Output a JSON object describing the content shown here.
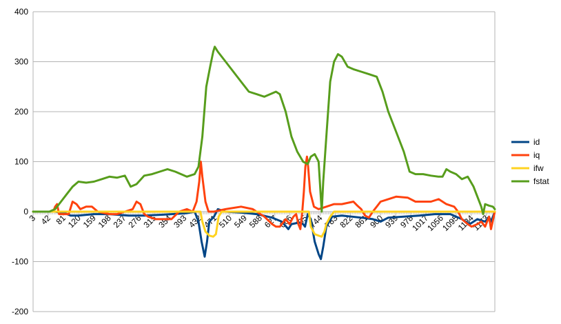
{
  "chart_data": {
    "type": "line",
    "title": "",
    "xlabel": "",
    "ylabel": "",
    "ylim": [
      -200,
      400
    ],
    "yticks": [
      -200,
      -100,
      0,
      100,
      200,
      300,
      400
    ],
    "xlim": [
      3,
      1195
    ],
    "xticks": [
      "3",
      "42",
      "81",
      "120",
      "159",
      "198",
      "237",
      "276",
      "315",
      "354",
      "393",
      "432",
      "471",
      "510",
      "549",
      "588",
      "627",
      "666",
      "705",
      "744",
      "783",
      "822",
      "861",
      "900",
      "939",
      "978",
      "1017",
      "1056",
      "1095",
      "1134",
      "1173"
    ],
    "grid": "horizontal",
    "legend_position": "right",
    "series": [
      {
        "name": "id",
        "color": "#004586",
        "points": [
          [
            3,
            0
          ],
          [
            60,
            0
          ],
          [
            85,
            -3
          ],
          [
            100,
            -8
          ],
          [
            120,
            -8
          ],
          [
            160,
            -5
          ],
          [
            200,
            -5
          ],
          [
            250,
            -8
          ],
          [
            290,
            -8
          ],
          [
            340,
            -6
          ],
          [
            400,
            -3
          ],
          [
            420,
            0
          ],
          [
            430,
            -20
          ],
          [
            438,
            -60
          ],
          [
            446,
            -90
          ],
          [
            452,
            -60
          ],
          [
            458,
            -20
          ],
          [
            470,
            -10
          ],
          [
            480,
            5
          ],
          [
            500,
            0
          ],
          [
            540,
            -2
          ],
          [
            580,
            -5
          ],
          [
            620,
            -12
          ],
          [
            645,
            -20
          ],
          [
            662,
            -35
          ],
          [
            670,
            -25
          ],
          [
            690,
            -22
          ],
          [
            700,
            -25
          ],
          [
            705,
            -30
          ],
          [
            712,
            -5
          ],
          [
            720,
            -15
          ],
          [
            730,
            -60
          ],
          [
            740,
            -85
          ],
          [
            746,
            -95
          ],
          [
            752,
            -70
          ],
          [
            760,
            -30
          ],
          [
            775,
            -10
          ],
          [
            800,
            -8
          ],
          [
            850,
            -12
          ],
          [
            880,
            -15
          ],
          [
            900,
            -20
          ],
          [
            920,
            -12
          ],
          [
            960,
            -10
          ],
          [
            1000,
            -8
          ],
          [
            1040,
            -5
          ],
          [
            1080,
            -5
          ],
          [
            1110,
            -15
          ],
          [
            1130,
            -25
          ],
          [
            1150,
            -15
          ],
          [
            1170,
            -20
          ],
          [
            1180,
            -10
          ],
          [
            1185,
            -20
          ],
          [
            1195,
            0
          ]
        ]
      },
      {
        "name": "iq",
        "color": "#ff420e",
        "points": [
          [
            3,
            0
          ],
          [
            55,
            0
          ],
          [
            60,
            10
          ],
          [
            65,
            15
          ],
          [
            70,
            -5
          ],
          [
            80,
            -5
          ],
          [
            95,
            -5
          ],
          [
            105,
            20
          ],
          [
            115,
            15
          ],
          [
            125,
            5
          ],
          [
            140,
            10
          ],
          [
            155,
            10
          ],
          [
            170,
            0
          ],
          [
            200,
            -5
          ],
          [
            220,
            -5
          ],
          [
            240,
            0
          ],
          [
            260,
            5
          ],
          [
            270,
            20
          ],
          [
            280,
            15
          ],
          [
            290,
            -5
          ],
          [
            300,
            -10
          ],
          [
            320,
            -15
          ],
          [
            360,
            -15
          ],
          [
            380,
            0
          ],
          [
            400,
            5
          ],
          [
            415,
            0
          ],
          [
            425,
            20
          ],
          [
            432,
            60
          ],
          [
            436,
            100
          ],
          [
            440,
            70
          ],
          [
            448,
            20
          ],
          [
            456,
            0
          ],
          [
            470,
            0
          ],
          [
            500,
            5
          ],
          [
            540,
            10
          ],
          [
            570,
            5
          ],
          [
            600,
            -10
          ],
          [
            620,
            -25
          ],
          [
            630,
            -30
          ],
          [
            640,
            -30
          ],
          [
            655,
            -15
          ],
          [
            665,
            -25
          ],
          [
            675,
            -10
          ],
          [
            682,
            -5
          ],
          [
            688,
            -25
          ],
          [
            693,
            -35
          ],
          [
            698,
            0
          ],
          [
            702,
            40
          ],
          [
            706,
            90
          ],
          [
            710,
            110
          ],
          [
            713,
            90
          ],
          [
            718,
            40
          ],
          [
            728,
            10
          ],
          [
            740,
            5
          ],
          [
            760,
            10
          ],
          [
            780,
            15
          ],
          [
            800,
            15
          ],
          [
            830,
            20
          ],
          [
            840,
            12
          ],
          [
            850,
            5
          ],
          [
            860,
            -8
          ],
          [
            870,
            -12
          ],
          [
            880,
            0
          ],
          [
            890,
            10
          ],
          [
            900,
            20
          ],
          [
            920,
            25
          ],
          [
            940,
            30
          ],
          [
            970,
            28
          ],
          [
            990,
            20
          ],
          [
            1010,
            20
          ],
          [
            1030,
            20
          ],
          [
            1050,
            25
          ],
          [
            1070,
            15
          ],
          [
            1090,
            10
          ],
          [
            1100,
            0
          ],
          [
            1110,
            -15
          ],
          [
            1125,
            -25
          ],
          [
            1135,
            -30
          ],
          [
            1150,
            -25
          ],
          [
            1160,
            -20
          ],
          [
            1170,
            -30
          ],
          [
            1180,
            -10
          ],
          [
            1185,
            -35
          ],
          [
            1195,
            0
          ]
        ]
      },
      {
        "name": "ifw",
        "color": "#ffd320",
        "points": [
          [
            3,
            0
          ],
          [
            300,
            0
          ],
          [
            435,
            0
          ],
          [
            440,
            -20
          ],
          [
            448,
            -40
          ],
          [
            458,
            -48
          ],
          [
            468,
            -50
          ],
          [
            475,
            -45
          ],
          [
            482,
            -10
          ],
          [
            490,
            0
          ],
          [
            715,
            0
          ],
          [
            720,
            -30
          ],
          [
            730,
            -45
          ],
          [
            740,
            -48
          ],
          [
            748,
            -50
          ],
          [
            755,
            -40
          ],
          [
            760,
            -25
          ],
          [
            770,
            -10
          ],
          [
            780,
            0
          ],
          [
            1190,
            0
          ],
          [
            1195,
            0
          ]
        ]
      },
      {
        "name": "fstat",
        "color": "#579d1c",
        "points": [
          [
            3,
            0
          ],
          [
            45,
            0
          ],
          [
            60,
            5
          ],
          [
            75,
            20
          ],
          [
            90,
            35
          ],
          [
            105,
            50
          ],
          [
            120,
            60
          ],
          [
            140,
            58
          ],
          [
            160,
            60
          ],
          [
            180,
            65
          ],
          [
            200,
            70
          ],
          [
            220,
            68
          ],
          [
            240,
            72
          ],
          [
            255,
            50
          ],
          [
            270,
            55
          ],
          [
            290,
            72
          ],
          [
            310,
            75
          ],
          [
            330,
            80
          ],
          [
            350,
            85
          ],
          [
            370,
            80
          ],
          [
            385,
            75
          ],
          [
            400,
            70
          ],
          [
            420,
            75
          ],
          [
            430,
            90
          ],
          [
            440,
            150
          ],
          [
            450,
            250
          ],
          [
            460,
            290
          ],
          [
            468,
            320
          ],
          [
            472,
            330
          ],
          [
            480,
            320
          ],
          [
            500,
            300
          ],
          [
            520,
            280
          ],
          [
            540,
            260
          ],
          [
            560,
            240
          ],
          [
            580,
            235
          ],
          [
            600,
            230
          ],
          [
            615,
            235
          ],
          [
            630,
            240
          ],
          [
            640,
            235
          ],
          [
            655,
            200
          ],
          [
            670,
            150
          ],
          [
            685,
            120
          ],
          [
            700,
            100
          ],
          [
            712,
            95
          ],
          [
            720,
            110
          ],
          [
            730,
            115
          ],
          [
            740,
            100
          ],
          [
            748,
            0
          ],
          [
            752,
            60
          ],
          [
            760,
            150
          ],
          [
            770,
            260
          ],
          [
            780,
            300
          ],
          [
            790,
            315
          ],
          [
            800,
            310
          ],
          [
            815,
            290
          ],
          [
            830,
            285
          ],
          [
            850,
            280
          ],
          [
            870,
            275
          ],
          [
            890,
            270
          ],
          [
            905,
            240
          ],
          [
            920,
            200
          ],
          [
            940,
            160
          ],
          [
            960,
            120
          ],
          [
            975,
            80
          ],
          [
            990,
            75
          ],
          [
            1010,
            75
          ],
          [
            1030,
            72
          ],
          [
            1050,
            70
          ],
          [
            1060,
            70
          ],
          [
            1070,
            85
          ],
          [
            1080,
            80
          ],
          [
            1095,
            75
          ],
          [
            1110,
            65
          ],
          [
            1125,
            70
          ],
          [
            1140,
            50
          ],
          [
            1150,
            30
          ],
          [
            1160,
            10
          ],
          [
            1165,
            -5
          ],
          [
            1170,
            15
          ],
          [
            1180,
            12
          ],
          [
            1190,
            10
          ],
          [
            1195,
            5
          ]
        ]
      }
    ]
  }
}
